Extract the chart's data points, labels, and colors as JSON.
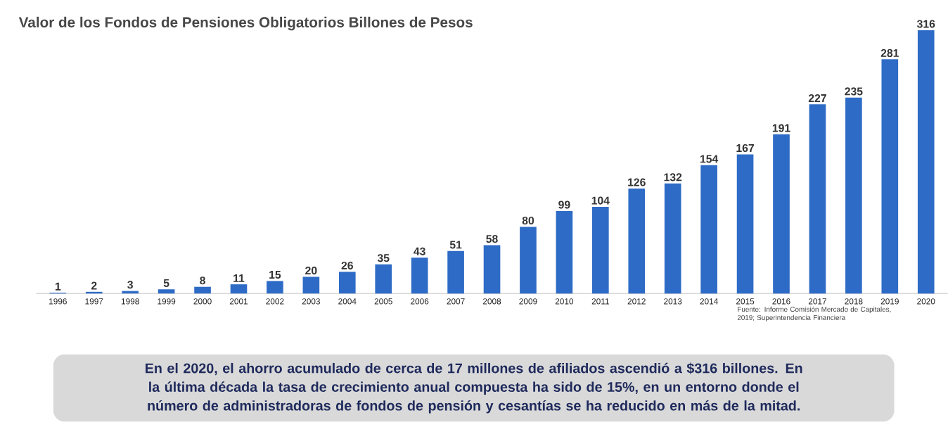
{
  "chart_data": {
    "type": "bar",
    "title": "Valor de los Fondos de Pensiones Obligatorios Billones de Pesos",
    "categories": [
      "1996",
      "1997",
      "1998",
      "1999",
      "2000",
      "2001",
      "2002",
      "2003",
      "2004",
      "2005",
      "2006",
      "2007",
      "2008",
      "2009",
      "2010",
      "2011",
      "2012",
      "2013",
      "2014",
      "2015",
      "2016",
      "2017",
      "2018",
      "2019",
      "2020"
    ],
    "values": [
      1,
      2,
      3,
      5,
      8,
      11,
      15,
      20,
      26,
      35,
      43,
      51,
      58,
      80,
      99,
      104,
      126,
      132,
      154,
      167,
      191,
      227,
      235,
      281,
      316
    ],
    "color": "#2e6bc6",
    "data_labels": true,
    "relative": false,
    "annotations": [
      "Fuente: Informe Comisión Mercado de Capitales, 2019; Superintendencia Financiera",
      "En el 2020, el ahorro acumulado de cerca de 17 millones de afiliados ascendió a $316 billones. En la última década la tasa de crecimiento anual compuesta ha sido de 15%, en un entorno donde el número de administradoras de fondos de pensión y cesantías se ha reducido en más de la mitad."
    ]
  }
}
